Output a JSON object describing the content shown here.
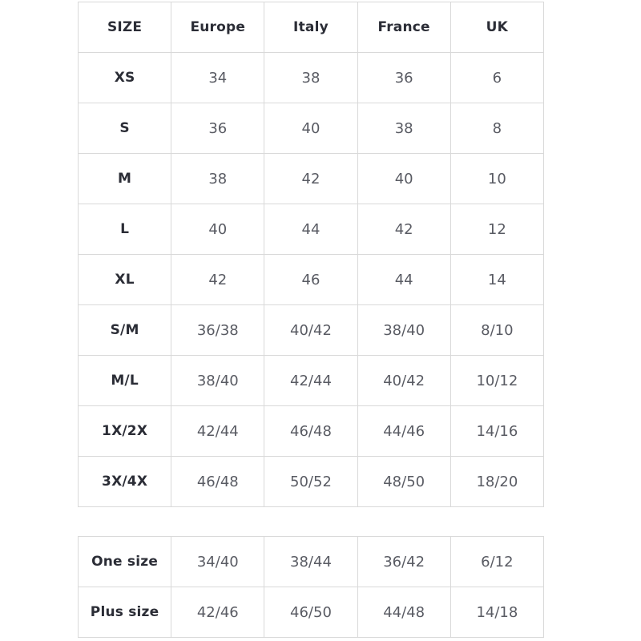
{
  "main_table": {
    "headers": [
      "SIZE",
      "Europe",
      "Italy",
      "France",
      "UK"
    ],
    "rows": [
      {
        "size": "XS",
        "values": [
          "34",
          "38",
          "36",
          "6"
        ]
      },
      {
        "size": "S",
        "values": [
          "36",
          "40",
          "38",
          "8"
        ]
      },
      {
        "size": "M",
        "values": [
          "38",
          "42",
          "40",
          "10"
        ]
      },
      {
        "size": "L",
        "values": [
          "40",
          "44",
          "42",
          "12"
        ]
      },
      {
        "size": "XL",
        "values": [
          "42",
          "46",
          "44",
          "14"
        ]
      },
      {
        "size": "S/M",
        "values": [
          "36/38",
          "40/42",
          "38/40",
          "8/10"
        ]
      },
      {
        "size": "M/L",
        "values": [
          "38/40",
          "42/44",
          "40/42",
          "10/12"
        ]
      },
      {
        "size": "1X/2X",
        "values": [
          "42/44",
          "46/48",
          "44/46",
          "14/16"
        ]
      },
      {
        "size": "3X/4X",
        "values": [
          "46/48",
          "50/52",
          "48/50",
          "18/20"
        ]
      }
    ]
  },
  "special_table": {
    "rows": [
      {
        "size": "One size",
        "values": [
          "34/40",
          "38/44",
          "36/42",
          "6/12"
        ]
      },
      {
        "size": "Plus size",
        "values": [
          "42/46",
          "46/50",
          "44/48",
          "14/18"
        ]
      }
    ]
  },
  "colors": {
    "border": "#d9d9d9",
    "header_text": "#2b2d36",
    "value_text": "#595b63",
    "background": "#ffffff"
  }
}
